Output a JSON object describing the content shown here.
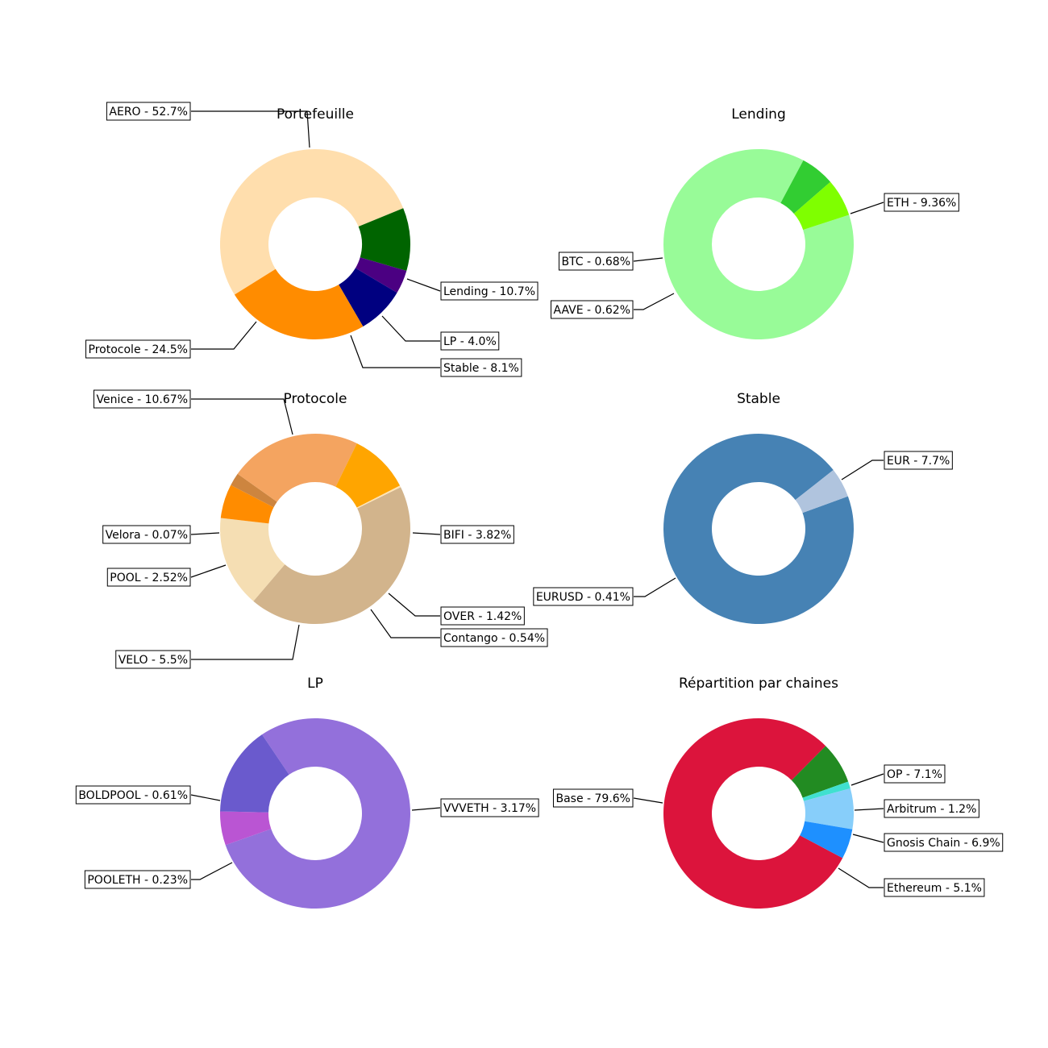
{
  "chart_data": [
    {
      "type": "pie",
      "donut": true,
      "title": "Portefeuille",
      "categories": [
        "AERO",
        "Lending",
        "LP",
        "Stable",
        "Protocole"
      ],
      "values": [
        52.7,
        10.7,
        4.0,
        8.1,
        24.5
      ],
      "labels": [
        "AERO - 52.7%",
        "Lending - 10.7%",
        "LP - 4.0%",
        "Stable - 8.1%",
        "Protocole - 24.5%"
      ],
      "colors": [
        "#FFDEAD",
        "#006400",
        "#4B0082",
        "#000080",
        "#FF8C00"
      ]
    },
    {
      "type": "pie",
      "donut": true,
      "title": "Lending",
      "categories": [
        "ETH",
        "AAVE",
        "BTC"
      ],
      "values": [
        9.36,
        0.62,
        0.68
      ],
      "labels": [
        "ETH - 9.36%",
        "AAVE - 0.62%",
        "BTC - 0.68%"
      ],
      "colors": [
        "#98FB98",
        "#32CD32",
        "#7FFF00"
      ]
    },
    {
      "type": "pie",
      "donut": true,
      "title": "Protocole",
      "categories": [
        "Venice",
        "BIFI",
        "OVER",
        "Contango",
        "VELO",
        "POOL",
        "Velora"
      ],
      "values": [
        10.67,
        3.82,
        1.42,
        0.54,
        5.5,
        2.52,
        0.07
      ],
      "labels": [
        "Venice - 10.67%",
        "BIFI - 3.82%",
        "OVER - 1.42%",
        "Contango - 0.54%",
        "VELO - 5.5%",
        "POOL - 2.52%",
        "Velora - 0.07%"
      ],
      "colors": [
        "#D2B48C",
        "#F5DEB3",
        "#FF8C00",
        "#CD853F",
        "#F4A460",
        "#FFA500",
        "#FFE4B5"
      ]
    },
    {
      "type": "pie",
      "donut": true,
      "title": "Stable",
      "categories": [
        "EUR",
        "EURUSD"
      ],
      "values": [
        7.7,
        0.41
      ],
      "labels": [
        "EUR - 7.7%",
        "EURUSD - 0.41%"
      ],
      "colors": [
        "#4682B4",
        "#B0C4DE"
      ]
    },
    {
      "type": "pie",
      "donut": true,
      "title": "LP",
      "categories": [
        "VVVETH",
        "POOLETH",
        "BOLDPOOL"
      ],
      "values": [
        3.17,
        0.23,
        0.61
      ],
      "labels": [
        "VVVETH - 3.17%",
        "POOLETH - 0.23%",
        "BOLDPOOL - 0.61%"
      ],
      "colors": [
        "#9370DB",
        "#BA55D3",
        "#6A5ACD"
      ]
    },
    {
      "type": "pie",
      "donut": true,
      "title": "Répartition par chaines",
      "categories": [
        "Base",
        "OP",
        "Arbitrum",
        "Gnosis Chain",
        "Ethereum"
      ],
      "values": [
        79.6,
        7.1,
        1.2,
        6.9,
        5.1
      ],
      "labels": [
        "Base - 79.6%",
        "OP - 7.1%",
        "Arbitrum - 1.2%",
        "Gnosis Chain - 6.9%",
        "Ethereum - 5.1%"
      ],
      "colors": [
        "#DC143C",
        "#228B22",
        "#40E0D0",
        "#87CEFA",
        "#1E90FF"
      ]
    }
  ]
}
